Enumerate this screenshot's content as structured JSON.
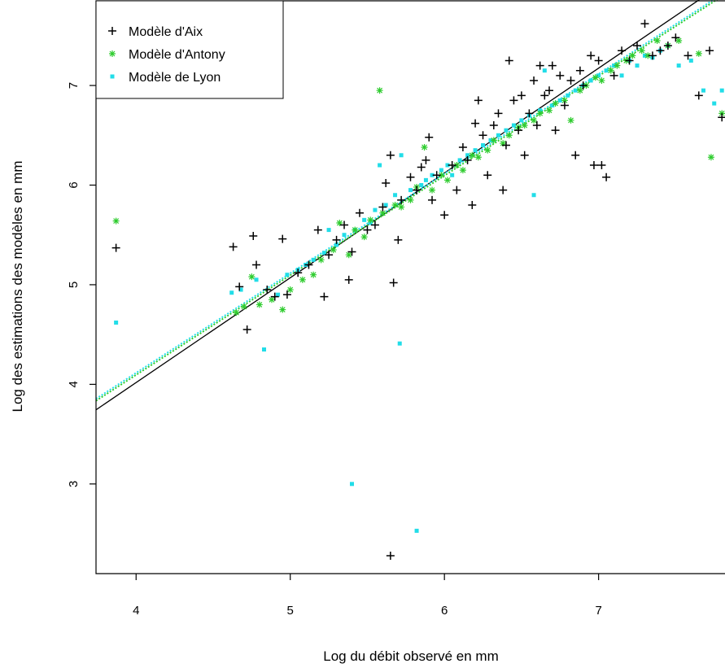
{
  "chart_data": {
    "type": "scatter",
    "title": "",
    "xlabel": "Log du débit observé en mm",
    "ylabel": "Log des estimations des modèles en mm",
    "xlim": [
      3.74,
      7.82
    ],
    "ylim": [
      2.1,
      7.85
    ],
    "x_ticks": [
      "4",
      "5",
      "6",
      "7"
    ],
    "y_ticks": [
      "3",
      "4",
      "5",
      "6",
      "7"
    ],
    "legend": "top-left",
    "grid": false,
    "series": [
      {
        "name": "Modèle d'Aix",
        "marker": "plus",
        "color": "#000000",
        "fit": {
          "slope": 1.052,
          "intercept": -0.19,
          "style": "solid"
        },
        "points": [
          [
            3.87,
            5.37
          ],
          [
            4.63,
            5.38
          ],
          [
            4.67,
            4.98
          ],
          [
            4.72,
            4.55
          ],
          [
            4.76,
            5.49
          ],
          [
            4.78,
            5.2
          ],
          [
            4.85,
            4.95
          ],
          [
            4.9,
            4.88
          ],
          [
            4.95,
            5.46
          ],
          [
            4.98,
            4.9
          ],
          [
            5.05,
            5.12
          ],
          [
            5.12,
            5.2
          ],
          [
            5.18,
            5.55
          ],
          [
            5.22,
            4.88
          ],
          [
            5.25,
            5.3
          ],
          [
            5.3,
            5.45
          ],
          [
            5.35,
            5.6
          ],
          [
            5.38,
            5.05
          ],
          [
            5.4,
            5.33
          ],
          [
            5.45,
            5.72
          ],
          [
            5.5,
            5.55
          ],
          [
            5.55,
            5.6
          ],
          [
            5.6,
            5.78
          ],
          [
            5.62,
            6.02
          ],
          [
            5.65,
            6.3
          ],
          [
            5.65,
            2.28
          ],
          [
            5.67,
            5.02
          ],
          [
            5.7,
            5.45
          ],
          [
            5.72,
            5.85
          ],
          [
            5.78,
            6.08
          ],
          [
            5.82,
            5.95
          ],
          [
            5.85,
            6.18
          ],
          [
            5.88,
            6.25
          ],
          [
            5.9,
            6.48
          ],
          [
            5.92,
            5.85
          ],
          [
            5.95,
            6.1
          ],
          [
            6.0,
            5.7
          ],
          [
            6.05,
            6.2
          ],
          [
            6.08,
            5.95
          ],
          [
            6.12,
            6.38
          ],
          [
            6.15,
            6.25
          ],
          [
            6.18,
            5.8
          ],
          [
            6.2,
            6.62
          ],
          [
            6.22,
            6.85
          ],
          [
            6.25,
            6.5
          ],
          [
            6.28,
            6.1
          ],
          [
            6.32,
            6.6
          ],
          [
            6.35,
            6.72
          ],
          [
            6.38,
            5.95
          ],
          [
            6.4,
            6.4
          ],
          [
            6.42,
            7.25
          ],
          [
            6.45,
            6.85
          ],
          [
            6.48,
            6.55
          ],
          [
            6.5,
            6.9
          ],
          [
            6.52,
            6.3
          ],
          [
            6.55,
            6.72
          ],
          [
            6.58,
            7.05
          ],
          [
            6.6,
            6.6
          ],
          [
            6.62,
            7.2
          ],
          [
            6.65,
            6.9
          ],
          [
            6.68,
            6.95
          ],
          [
            6.7,
            7.2
          ],
          [
            6.72,
            6.55
          ],
          [
            6.75,
            7.1
          ],
          [
            6.78,
            6.8
          ],
          [
            6.82,
            7.05
          ],
          [
            6.85,
            6.3
          ],
          [
            6.88,
            7.15
          ],
          [
            6.9,
            7.0
          ],
          [
            6.95,
            7.3
          ],
          [
            6.97,
            6.2
          ],
          [
            7.0,
            7.25
          ],
          [
            7.02,
            6.2
          ],
          [
            7.05,
            6.08
          ],
          [
            7.1,
            7.1
          ],
          [
            7.15,
            7.35
          ],
          [
            7.2,
            7.25
          ],
          [
            7.25,
            7.4
          ],
          [
            7.3,
            7.62
          ],
          [
            7.35,
            7.3
          ],
          [
            7.4,
            7.35
          ],
          [
            7.45,
            7.4
          ],
          [
            7.5,
            7.48
          ],
          [
            7.58,
            7.3
          ],
          [
            7.65,
            6.9
          ],
          [
            7.72,
            7.35
          ],
          [
            7.8,
            6.68
          ]
        ]
      },
      {
        "name": "Modèle d'Antony",
        "marker": "asterisk",
        "color": "#2ecc2e",
        "fit": {
          "slope": 1.0,
          "intercept": 0.095,
          "style": "dotted"
        },
        "points": [
          [
            3.87,
            5.64
          ],
          [
            4.65,
            4.72
          ],
          [
            4.7,
            4.78
          ],
          [
            4.75,
            5.08
          ],
          [
            4.8,
            4.8
          ],
          [
            4.88,
            4.85
          ],
          [
            4.95,
            4.75
          ],
          [
            5.0,
            4.95
          ],
          [
            5.08,
            5.05
          ],
          [
            5.15,
            5.1
          ],
          [
            5.2,
            5.25
          ],
          [
            5.28,
            5.35
          ],
          [
            5.32,
            5.62
          ],
          [
            5.38,
            5.3
          ],
          [
            5.42,
            5.55
          ],
          [
            5.48,
            5.48
          ],
          [
            5.52,
            5.65
          ],
          [
            5.58,
            6.95
          ],
          [
            5.6,
            5.72
          ],
          [
            5.68,
            5.8
          ],
          [
            5.72,
            5.78
          ],
          [
            5.78,
            5.85
          ],
          [
            5.82,
            5.98
          ],
          [
            5.87,
            6.38
          ],
          [
            5.92,
            5.95
          ],
          [
            5.98,
            6.1
          ],
          [
            6.02,
            6.05
          ],
          [
            6.08,
            6.2
          ],
          [
            6.12,
            6.15
          ],
          [
            6.18,
            6.3
          ],
          [
            6.22,
            6.28
          ],
          [
            6.28,
            6.35
          ],
          [
            6.32,
            6.45
          ],
          [
            6.38,
            6.42
          ],
          [
            6.42,
            6.5
          ],
          [
            6.48,
            6.58
          ],
          [
            6.52,
            6.6
          ],
          [
            6.58,
            6.65
          ],
          [
            6.62,
            6.72
          ],
          [
            6.68,
            6.75
          ],
          [
            6.72,
            6.82
          ],
          [
            6.78,
            6.85
          ],
          [
            6.82,
            6.65
          ],
          [
            6.88,
            6.95
          ],
          [
            6.92,
            7.0
          ],
          [
            6.98,
            7.08
          ],
          [
            7.02,
            7.05
          ],
          [
            7.08,
            7.15
          ],
          [
            7.12,
            7.2
          ],
          [
            7.18,
            7.25
          ],
          [
            7.22,
            7.3
          ],
          [
            7.28,
            7.35
          ],
          [
            7.32,
            7.3
          ],
          [
            7.38,
            7.45
          ],
          [
            7.45,
            7.4
          ],
          [
            7.52,
            7.45
          ],
          [
            7.65,
            7.32
          ],
          [
            7.73,
            6.28
          ],
          [
            7.8,
            6.72
          ]
        ]
      },
      {
        "name": "Modèle de Lyon",
        "marker": "square",
        "color": "#22dde8",
        "fit": {
          "slope": 1.0,
          "intercept": 0.115,
          "style": "dotted"
        },
        "points": [
          [
            3.87,
            4.62
          ],
          [
            4.62,
            4.92
          ],
          [
            4.68,
            4.95
          ],
          [
            4.78,
            5.05
          ],
          [
            4.83,
            4.35
          ],
          [
            4.92,
            4.9
          ],
          [
            4.98,
            5.1
          ],
          [
            5.05,
            5.15
          ],
          [
            5.1,
            5.2
          ],
          [
            5.15,
            5.25
          ],
          [
            5.22,
            5.32
          ],
          [
            5.25,
            5.55
          ],
          [
            5.3,
            5.4
          ],
          [
            5.35,
            5.5
          ],
          [
            5.4,
            3.0
          ],
          [
            5.42,
            5.55
          ],
          [
            5.48,
            5.65
          ],
          [
            5.52,
            5.62
          ],
          [
            5.55,
            5.75
          ],
          [
            5.58,
            6.2
          ],
          [
            5.62,
            5.8
          ],
          [
            5.68,
            5.9
          ],
          [
            5.71,
            4.41
          ],
          [
            5.72,
            6.3
          ],
          [
            5.78,
            5.95
          ],
          [
            5.82,
            2.53
          ],
          [
            5.85,
            6.0
          ],
          [
            5.88,
            6.05
          ],
          [
            5.92,
            6.1
          ],
          [
            5.98,
            6.15
          ],
          [
            6.02,
            6.2
          ],
          [
            6.05,
            6.1
          ],
          [
            6.1,
            6.25
          ],
          [
            6.15,
            6.3
          ],
          [
            6.2,
            6.35
          ],
          [
            6.25,
            6.4
          ],
          [
            6.3,
            6.45
          ],
          [
            6.35,
            6.5
          ],
          [
            6.4,
            6.55
          ],
          [
            6.45,
            6.6
          ],
          [
            6.5,
            6.65
          ],
          [
            6.55,
            6.7
          ],
          [
            6.58,
            5.9
          ],
          [
            6.62,
            6.75
          ],
          [
            6.65,
            7.15
          ],
          [
            6.7,
            6.8
          ],
          [
            6.75,
            6.85
          ],
          [
            6.8,
            6.9
          ],
          [
            6.85,
            6.95
          ],
          [
            6.9,
            7.0
          ],
          [
            6.95,
            7.05
          ],
          [
            7.0,
            7.1
          ],
          [
            7.05,
            7.15
          ],
          [
            7.1,
            7.2
          ],
          [
            7.15,
            7.1
          ],
          [
            7.2,
            7.25
          ],
          [
            7.25,
            7.2
          ],
          [
            7.3,
            7.3
          ],
          [
            7.35,
            7.28
          ],
          [
            7.4,
            7.35
          ],
          [
            7.45,
            7.4
          ],
          [
            7.52,
            7.2
          ],
          [
            7.6,
            7.25
          ],
          [
            7.68,
            6.95
          ],
          [
            7.75,
            6.82
          ],
          [
            7.8,
            6.95
          ]
        ]
      }
    ]
  }
}
